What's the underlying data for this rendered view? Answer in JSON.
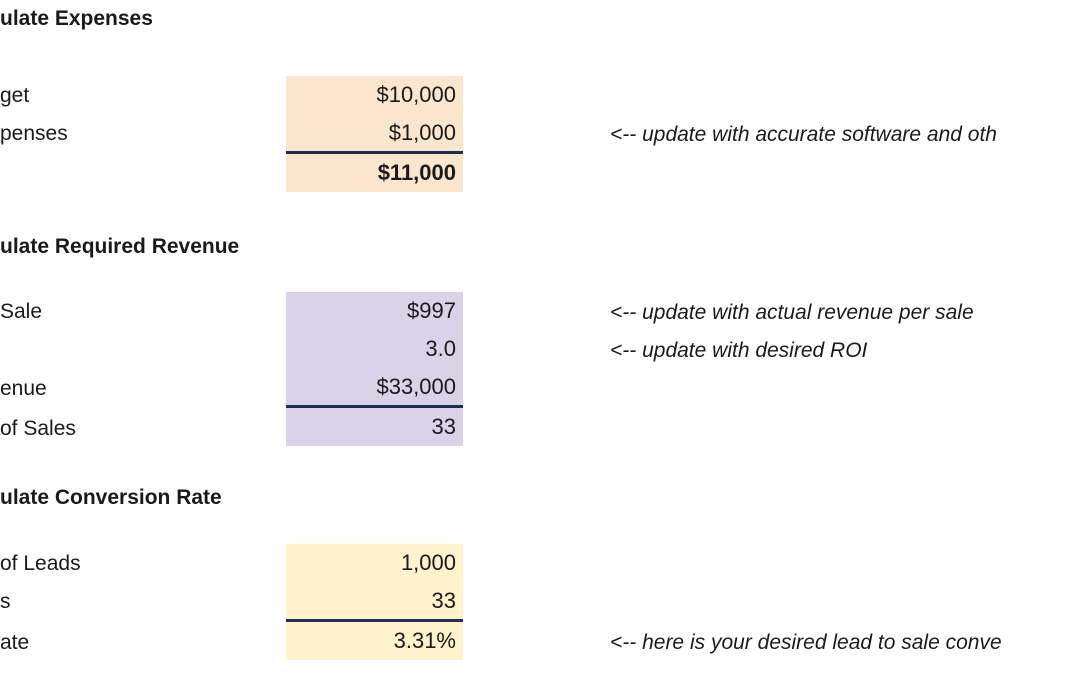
{
  "sections": {
    "expenses": {
      "heading": "ulate Expenses",
      "rows": [
        {
          "label": "get",
          "value": "$10,000"
        },
        {
          "label": "penses",
          "value": "$1,000"
        },
        {
          "label": "",
          "value": "$11,000"
        }
      ]
    },
    "revenue": {
      "heading": "ulate Required Revenue",
      "rows": [
        {
          "label": "Sale",
          "value": "$997"
        },
        {
          "label": "",
          "value": "3.0"
        },
        {
          "label": "enue",
          "value": "$33,000"
        },
        {
          "label": "of Sales",
          "value": "33"
        }
      ]
    },
    "conversion": {
      "heading": "ulate Conversion Rate",
      "rows": [
        {
          "label": "of Leads",
          "value": "1,000"
        },
        {
          "label": "s",
          "value": "33"
        },
        {
          "label": "ate",
          "value": "3.31%"
        }
      ]
    }
  },
  "notes": {
    "software": "<-- update with accurate software and oth",
    "revenue_per_sale": "<-- update with actual revenue per sale",
    "roi": "<-- update with desired ROI",
    "conversion": "<-- here is your desired lead to sale conve"
  },
  "colors": {
    "expenses_fill": "#fce5cd",
    "revenue_fill": "#d9d2e9",
    "conversion_fill": "#fff2cc",
    "total_rule": "#1c2f52"
  }
}
